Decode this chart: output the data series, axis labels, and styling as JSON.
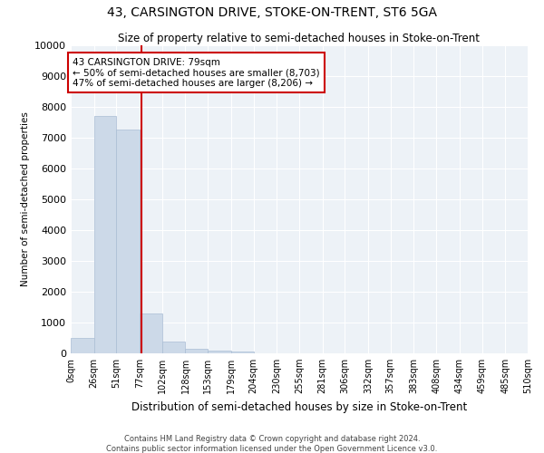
{
  "title": "43, CARSINGTON DRIVE, STOKE-ON-TRENT, ST6 5GA",
  "subtitle": "Size of property relative to semi-detached houses in Stoke-on-Trent",
  "xlabel": "Distribution of semi-detached houses by size in Stoke-on-Trent",
  "ylabel": "Number of semi-detached properties",
  "bar_color": "#ccd9e8",
  "bar_edgecolor": "#aabdd4",
  "annotation_line1": "43 CARSINGTON DRIVE: 79sqm",
  "annotation_line2": "← 50% of semi-detached houses are smaller (8,703)",
  "annotation_line3": "47% of semi-detached houses are larger (8,206) →",
  "vline_x": 79,
  "vline_color": "#cc0000",
  "background_color": "#ffffff",
  "plot_background": "#edf2f7",
  "bin_edges": [
    0,
    26,
    51,
    77,
    102,
    128,
    153,
    179,
    204,
    230,
    255,
    281,
    306,
    332,
    357,
    383,
    408,
    434,
    459,
    485,
    510
  ],
  "bin_heights": [
    500,
    7700,
    7250,
    1300,
    370,
    150,
    100,
    60,
    0,
    0,
    0,
    0,
    0,
    0,
    0,
    0,
    0,
    0,
    0,
    0
  ],
  "tick_labels": [
    "0sqm",
    "26sqm",
    "51sqm",
    "77sqm",
    "102sqm",
    "128sqm",
    "153sqm",
    "179sqm",
    "204sqm",
    "230sqm",
    "255sqm",
    "281sqm",
    "306sqm",
    "332sqm",
    "357sqm",
    "383sqm",
    "408sqm",
    "434sqm",
    "459sqm",
    "485sqm",
    "510sqm"
  ],
  "ylim": [
    0,
    10000
  ],
  "yticks": [
    0,
    1000,
    2000,
    3000,
    4000,
    5000,
    6000,
    7000,
    8000,
    9000,
    10000
  ],
  "footer1": "Contains HM Land Registry data © Crown copyright and database right 2024.",
  "footer2": "Contains public sector information licensed under the Open Government Licence v3.0."
}
